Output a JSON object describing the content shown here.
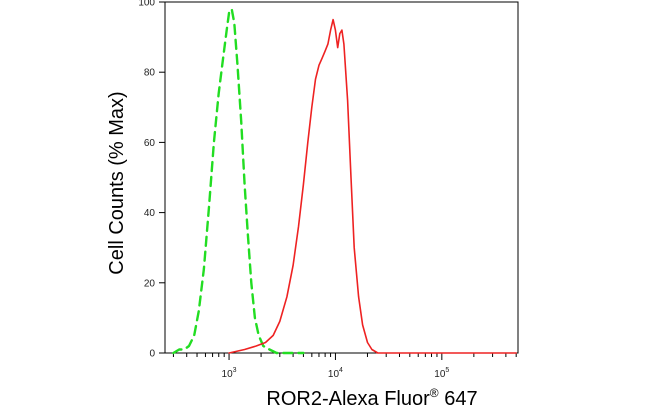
{
  "chart_data": {
    "type": "line",
    "xlabel": {
      "text": "ROR2-Alexa Fluor",
      "superscript": "®",
      "suffix": " 647"
    },
    "ylabel": "Cell Counts (% Max)",
    "x_scale": "log",
    "xlim": [
      250,
      520000
    ],
    "ylim": [
      0,
      100
    ],
    "y_ticks": [
      0,
      20,
      40,
      60,
      80,
      100
    ],
    "y_tick_labels": [
      "0",
      "20",
      "40",
      "60",
      "80",
      "100"
    ],
    "x_ticks": [
      {
        "value": 1000,
        "base": "10",
        "exp": "3"
      },
      {
        "value": 10000,
        "base": "10",
        "exp": "4"
      },
      {
        "value": 100000,
        "base": "10",
        "exp": "5"
      }
    ],
    "grid": false,
    "legend": "none",
    "series": [
      {
        "color": "#22dd22",
        "dash": "dashed",
        "points": [
          [
            300,
            0
          ],
          [
            340,
            1
          ],
          [
            380,
            1
          ],
          [
            420,
            2
          ],
          [
            470,
            5
          ],
          [
            520,
            12
          ],
          [
            580,
            24
          ],
          [
            650,
            42
          ],
          [
            720,
            60
          ],
          [
            800,
            74
          ],
          [
            880,
            84
          ],
          [
            950,
            92
          ],
          [
            1000,
            97
          ],
          [
            1060,
            98
          ],
          [
            1120,
            94
          ],
          [
            1200,
            82
          ],
          [
            1300,
            66
          ],
          [
            1400,
            48
          ],
          [
            1500,
            34
          ],
          [
            1620,
            20
          ],
          [
            1750,
            10
          ],
          [
            1900,
            5
          ],
          [
            2100,
            2
          ],
          [
            2400,
            1
          ],
          [
            2800,
            0
          ],
          [
            3500,
            0
          ],
          [
            5000,
            0
          ]
        ]
      },
      {
        "color": "#ee2222",
        "dash": "solid",
        "points": [
          [
            1000,
            0
          ],
          [
            1400,
            1
          ],
          [
            1800,
            2
          ],
          [
            2200,
            3
          ],
          [
            2600,
            5
          ],
          [
            3000,
            9
          ],
          [
            3500,
            16
          ],
          [
            4000,
            25
          ],
          [
            4500,
            36
          ],
          [
            5000,
            48
          ],
          [
            5500,
            60
          ],
          [
            6000,
            70
          ],
          [
            6500,
            78
          ],
          [
            7000,
            82
          ],
          [
            7500,
            84
          ],
          [
            8000,
            86
          ],
          [
            8500,
            88
          ],
          [
            9000,
            92
          ],
          [
            9500,
            95
          ],
          [
            10000,
            92
          ],
          [
            10500,
            87
          ],
          [
            11000,
            91
          ],
          [
            11500,
            92
          ],
          [
            12000,
            88
          ],
          [
            13000,
            72
          ],
          [
            14000,
            50
          ],
          [
            15000,
            30
          ],
          [
            16500,
            16
          ],
          [
            18000,
            8
          ],
          [
            20000,
            3
          ],
          [
            22000,
            1
          ],
          [
            25000,
            0
          ],
          [
            40000,
            0
          ],
          [
            100000,
            0
          ],
          [
            500000,
            0
          ]
        ]
      }
    ]
  }
}
